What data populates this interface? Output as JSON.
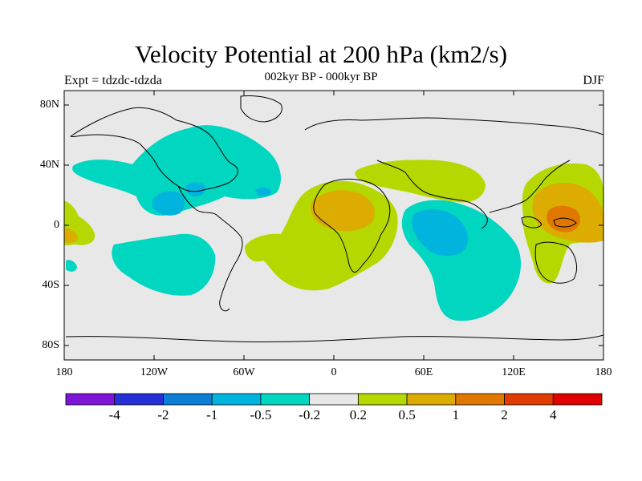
{
  "header": {
    "title": "Velocity Potential at 200 hPa (km2/s)",
    "subtitle": "002kyr BP - 000kyr BP",
    "left_label": "Expt = tdzdc-tdzda",
    "right_label": "DJF"
  },
  "axes": {
    "lat_labels": [
      "80N",
      "40N",
      "0",
      "40S",
      "80S"
    ],
    "lon_labels": [
      "180",
      "120W",
      "60W",
      "0",
      "60E",
      "120E",
      "180"
    ]
  },
  "colorbar": {
    "labels": [
      "-4",
      "-2",
      "-1",
      "-0.5",
      "-0.2",
      "0.2",
      "0.5",
      "1",
      "2",
      "4"
    ],
    "colors": [
      "#7d15d8",
      "#2430d6",
      "#0b7fd6",
      "#00b4de",
      "#01d6c0",
      "#e8e8e8",
      "#b5d800",
      "#dcac00",
      "#e07800",
      "#e03c00",
      "#e00000"
    ]
  },
  "map_colors": {
    "ocean_background": "#e8e8e8",
    "coastline": "#000000"
  }
}
